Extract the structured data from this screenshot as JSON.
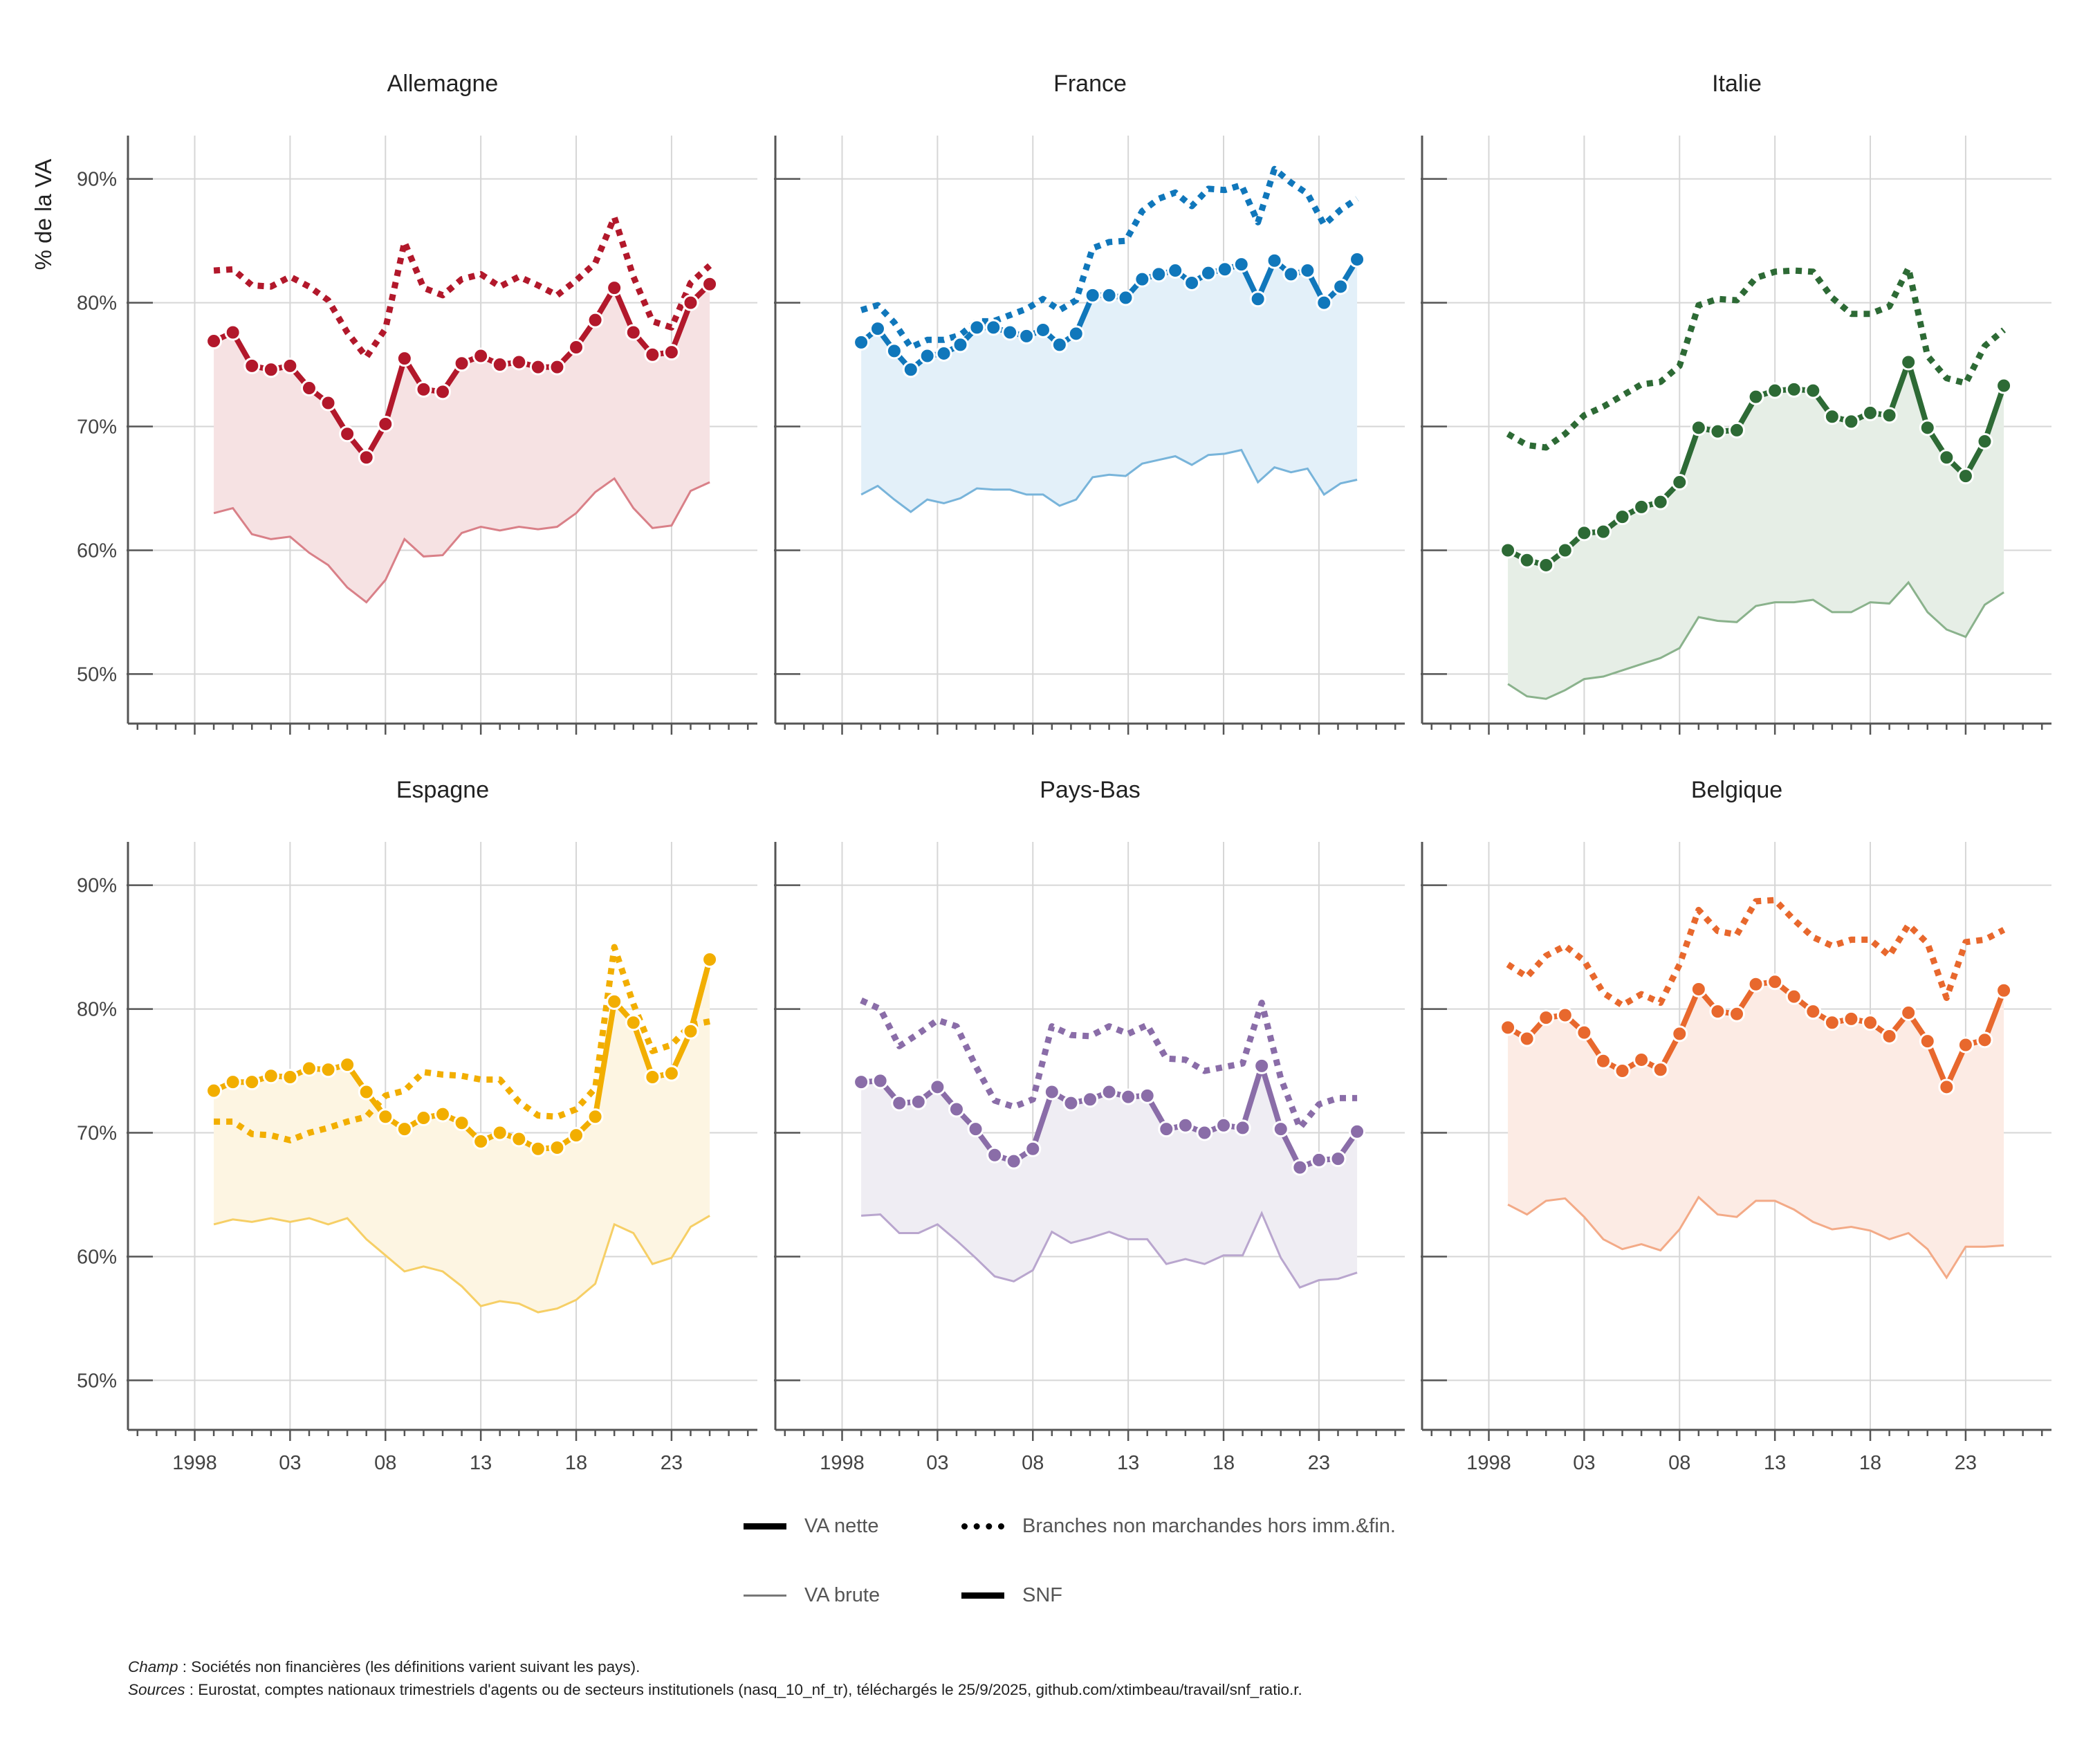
{
  "yaxis_title": "% de la VA",
  "legend": {
    "items": [
      {
        "label": "VA nette",
        "style": "solid-thick"
      },
      {
        "label": "Branches non marchandes hors imm.&fin.",
        "style": "dotted"
      },
      {
        "label": "VA brute",
        "style": "solid-thin"
      },
      {
        "label": "SNF",
        "style": "solid-thick"
      }
    ]
  },
  "notes": {
    "champ_label": "Champ",
    "champ_text": " : Sociétés non financières (les définitions varient suivant les pays).",
    "sources_label": "Sources",
    "sources_text": " : Eurostat, comptes nationaux trimestriels d'agents ou de secteurs institutionels (nasq_10_nf_tr), téléchargés le 25/9/2025, github.com/xtimbeau/travail/snf_ratio.r."
  },
  "chart_data": {
    "type": "line",
    "x": [
      1999,
      2000,
      2001,
      2002,
      2003,
      2004,
      2005,
      2006,
      2007,
      2008,
      2009,
      2010,
      2011,
      2012,
      2013,
      2014,
      2015,
      2016,
      2017,
      2018,
      2019,
      2020,
      2021,
      2022,
      2023,
      2024,
      2025
    ],
    "xlim": [
      1994.5,
      2027.5
    ],
    "ylim": [
      46,
      93.5
    ],
    "x_ticks": [
      1998,
      2003,
      2008,
      2013,
      2018,
      2023
    ],
    "x_tick_labels": [
      "1998",
      "03",
      "08",
      "13",
      "18",
      "23"
    ],
    "y_ticks": [
      50,
      60,
      70,
      80,
      90
    ],
    "y_tick_labels": [
      "50%",
      "60%",
      "70%",
      "80%",
      "90%"
    ],
    "grid": true,
    "legend_position": "bottom",
    "panels": [
      {
        "title": "Allemagne",
        "color": "#b2182b",
        "fill": "#f6e2e3",
        "light": "#d98088",
        "snf": [
          76.9,
          77.6,
          74.9,
          74.6,
          74.9,
          73.1,
          71.9,
          69.4,
          67.5,
          70.2,
          75.5,
          73.0,
          72.8,
          75.1,
          75.7,
          75.0,
          75.2,
          74.8,
          74.8,
          76.4,
          78.6,
          81.2,
          77.6,
          75.8,
          76.0,
          80.0,
          81.5
        ],
        "brute": [
          63.0,
          63.4,
          61.3,
          60.9,
          61.1,
          59.8,
          58.8,
          57.0,
          55.8,
          57.6,
          60.9,
          59.5,
          59.6,
          61.4,
          61.9,
          61.6,
          61.9,
          61.7,
          61.9,
          63.0,
          64.7,
          65.8,
          63.4,
          61.8,
          62.0,
          64.8,
          65.5
        ],
        "nonmarch": [
          82.6,
          82.7,
          81.4,
          81.3,
          82.1,
          81.3,
          80.2,
          77.6,
          75.6,
          77.9,
          84.9,
          81.2,
          80.6,
          81.9,
          82.3,
          81.3,
          82.1,
          81.4,
          80.6,
          81.8,
          83.2,
          86.9,
          82.1,
          78.5,
          78.0,
          81.6,
          83.0
        ]
      },
      {
        "title": "France",
        "color": "#1077bb",
        "fill": "#e3f0f9",
        "light": "#78b4da",
        "snf": [
          76.8,
          77.9,
          76.1,
          74.6,
          75.7,
          75.9,
          76.6,
          78.0,
          78.0,
          77.6,
          77.3,
          77.8,
          76.6,
          77.5,
          80.6,
          80.6,
          80.4,
          81.9,
          82.3,
          82.6,
          81.6,
          82.4,
          82.7,
          83.1,
          80.3,
          83.4,
          82.3,
          82.6,
          80.0,
          81.3,
          83.5
        ],
        "x": [
          1999,
          2000,
          2001,
          2002,
          2003,
          2004,
          2005,
          2006,
          2007,
          2008,
          2009,
          2010,
          2011,
          2012,
          2013,
          2014,
          2015,
          2016,
          2017,
          2018,
          2019,
          2020,
          2021,
          2022,
          2023,
          2024,
          2025,
          2026,
          2027,
          2028,
          2029
        ],
        "brute": [
          64.5,
          65.2,
          64.1,
          63.1,
          64.1,
          63.8,
          64.2,
          65.0,
          64.9,
          64.9,
          64.5,
          64.5,
          63.6,
          64.1,
          65.9,
          66.1,
          66.0,
          67.0,
          67.3,
          67.6,
          66.9,
          67.7,
          67.8,
          68.1,
          65.5,
          66.7,
          66.3,
          66.6,
          64.5,
          65.4,
          65.7
        ],
        "nonmarch": [
          79.4,
          79.8,
          78.4,
          76.4,
          77.0,
          77.0,
          77.4,
          78.5,
          78.5,
          79.0,
          79.5,
          80.3,
          79.4,
          80.2,
          84.4,
          84.9,
          85.0,
          87.4,
          88.4,
          88.9,
          87.8,
          89.2,
          89.1,
          89.5,
          86.5,
          90.8,
          89.7,
          88.8,
          86.3,
          87.5,
          88.4
        ]
      },
      {
        "title": "Italie",
        "color": "#2d6a35",
        "fill": "#e6eee6",
        "light": "#8ab28c",
        "snf": [
          60.0,
          59.2,
          58.8,
          60.0,
          61.4,
          61.5,
          62.7,
          63.5,
          63.9,
          65.5,
          69.9,
          69.6,
          69.7,
          72.4,
          72.9,
          73.0,
          72.9,
          70.8,
          70.4,
          71.1,
          70.9,
          75.2,
          69.9,
          67.5,
          66.0,
          68.8,
          73.3
        ],
        "brute": [
          49.2,
          48.2,
          48.0,
          48.7,
          49.6,
          49.8,
          50.3,
          50.8,
          51.3,
          52.1,
          54.6,
          54.3,
          54.2,
          55.5,
          55.8,
          55.8,
          56.0,
          55.0,
          55.0,
          55.8,
          55.7,
          57.4,
          55.0,
          53.6,
          53.0,
          55.6,
          56.6
        ],
        "nonmarch": [
          69.4,
          68.5,
          68.3,
          69.4,
          70.9,
          71.6,
          72.5,
          73.4,
          73.6,
          74.9,
          79.8,
          80.3,
          80.2,
          82.0,
          82.5,
          82.6,
          82.5,
          80.4,
          79.1,
          79.1,
          79.7,
          82.8,
          75.7,
          73.9,
          73.5,
          76.5,
          77.8
        ]
      },
      {
        "title": "Espagne",
        "color": "#f2ae00",
        "fill": "#fdf5e2",
        "light": "#f6cf66",
        "snf": [
          73.4,
          74.1,
          74.1,
          74.6,
          74.5,
          75.2,
          75.1,
          75.5,
          73.3,
          71.3,
          70.3,
          71.2,
          71.5,
          70.8,
          69.3,
          70.0,
          69.5,
          68.7,
          68.8,
          69.8,
          71.3,
          80.6,
          78.9,
          74.5,
          74.8,
          78.2,
          84.0
        ],
        "brute": [
          62.6,
          63.0,
          62.8,
          63.1,
          62.8,
          63.1,
          62.6,
          63.1,
          61.4,
          60.1,
          58.8,
          59.2,
          58.8,
          57.6,
          56.0,
          56.4,
          56.2,
          55.5,
          55.8,
          56.5,
          57.8,
          62.6,
          61.9,
          59.4,
          59.9,
          62.4,
          63.3
        ],
        "nonmarch": [
          70.9,
          70.9,
          69.9,
          69.8,
          69.4,
          70.0,
          70.4,
          70.9,
          71.3,
          73.0,
          73.4,
          74.9,
          74.7,
          74.6,
          74.3,
          74.3,
          72.5,
          71.4,
          71.3,
          71.9,
          73.6,
          85.0,
          80.4,
          76.6,
          77.1,
          78.7,
          79.0
        ]
      },
      {
        "title": "Pays-Bas",
        "color": "#8a6da8",
        "fill": "#efedf3",
        "light": "#b9a6ce",
        "snf": [
          74.1,
          74.2,
          72.4,
          72.5,
          73.7,
          71.9,
          70.3,
          68.2,
          67.7,
          68.7,
          73.3,
          72.4,
          72.7,
          73.3,
          72.9,
          73.0,
          70.3,
          70.6,
          70.0,
          70.6,
          70.4,
          75.4,
          70.3,
          67.2,
          67.8,
          67.9,
          70.1
        ],
        "brute": [
          63.3,
          63.4,
          61.9,
          61.9,
          62.6,
          61.3,
          59.9,
          58.4,
          58.0,
          58.9,
          62.0,
          61.1,
          61.5,
          62.0,
          61.4,
          61.4,
          59.4,
          59.8,
          59.4,
          60.1,
          60.1,
          63.5,
          59.9,
          57.5,
          58.1,
          58.2,
          58.7
        ],
        "nonmarch": [
          80.7,
          80.0,
          77.0,
          78.0,
          79.1,
          78.6,
          75.4,
          72.6,
          72.1,
          72.7,
          78.6,
          77.9,
          77.8,
          78.6,
          78.0,
          78.7,
          76.0,
          75.9,
          75.0,
          75.3,
          75.6,
          80.5,
          74.4,
          70.4,
          72.3,
          72.8,
          72.8
        ]
      },
      {
        "title": "Belgique",
        "color": "#e8682d",
        "fill": "#fcebe4",
        "light": "#f3aa87",
        "snf": [
          78.5,
          77.6,
          79.3,
          79.5,
          78.1,
          75.8,
          75.0,
          75.9,
          75.1,
          78.0,
          81.6,
          79.8,
          79.6,
          82.0,
          82.2,
          81.0,
          79.8,
          78.9,
          79.2,
          78.9,
          77.8,
          79.7,
          77.4,
          73.7,
          77.1,
          77.5,
          81.5
        ],
        "brute": [
          64.2,
          63.4,
          64.5,
          64.7,
          63.2,
          61.4,
          60.6,
          61.0,
          60.5,
          62.2,
          64.8,
          63.4,
          63.2,
          64.5,
          64.5,
          63.8,
          62.8,
          62.2,
          62.4,
          62.1,
          61.4,
          61.9,
          60.6,
          58.3,
          60.8,
          60.8,
          60.9
        ],
        "nonmarch": [
          83.6,
          82.6,
          84.3,
          85.1,
          83.9,
          81.3,
          80.3,
          81.2,
          80.5,
          83.6,
          88.0,
          86.3,
          86.0,
          88.7,
          88.8,
          87.2,
          85.8,
          85.1,
          85.6,
          85.6,
          84.3,
          86.8,
          85.3,
          80.9,
          85.4,
          85.6,
          86.4
        ]
      }
    ]
  }
}
